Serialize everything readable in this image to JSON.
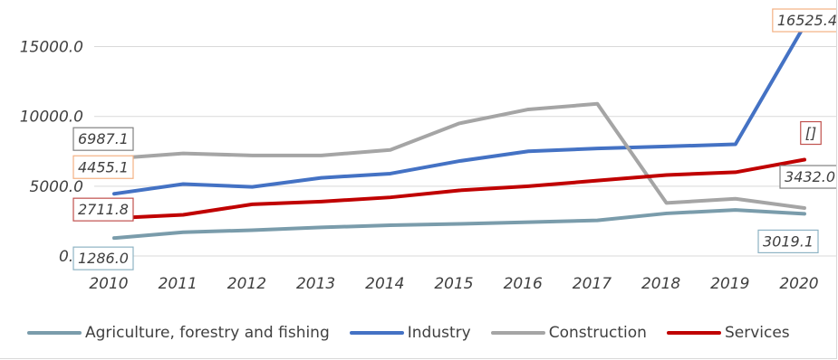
{
  "chart_data": {
    "type": "line",
    "x": [
      "2010",
      "2011",
      "2012",
      "2013",
      "2014",
      "2015",
      "2016",
      "2017",
      "2018",
      "2019",
      "2020"
    ],
    "ylim": [
      0,
      16525.4
    ],
    "yticks": [
      "0.0",
      "5000.0",
      "10000.0",
      "15000.0"
    ],
    "grid": true,
    "legend_position": "bottom",
    "series": [
      {
        "name": "Agriculture, forestry and fishing",
        "color": "#7a9cab",
        "values": [
          1286.0,
          1700,
          1850,
          2050,
          2200,
          2300,
          2420,
          2550,
          3050,
          3300,
          3019.1
        ],
        "labels": {
          "first": "1286.0",
          "last": "3019.1"
        },
        "label_border": "#8eb3c4"
      },
      {
        "name": "Industry",
        "color": "#4472c4",
        "values": [
          4455.1,
          5150,
          4950,
          5600,
          5900,
          6800,
          7500,
          7700,
          7850,
          8000,
          16525.4
        ],
        "labels": {
          "first": "4455.1",
          "last": "16525.4"
        },
        "label_border": "#f4b183"
      },
      {
        "name": "Construction",
        "color": "#a5a5a5",
        "values": [
          6987.1,
          7350,
          7200,
          7200,
          7600,
          9500,
          10500,
          10900,
          3800,
          4100,
          3432.0
        ],
        "labels": {
          "first": "6987.1",
          "last": "3432.0"
        },
        "label_border": "#808080"
      },
      {
        "name": "Services",
        "color": "#c00000",
        "values": [
          2711.8,
          2950,
          3700,
          3900,
          4200,
          4700,
          5000,
          5400,
          5800,
          6000,
          6900
        ],
        "labels": {
          "first": "2711.8",
          "last": "[]"
        },
        "label_border": "#c0504d"
      }
    ]
  }
}
